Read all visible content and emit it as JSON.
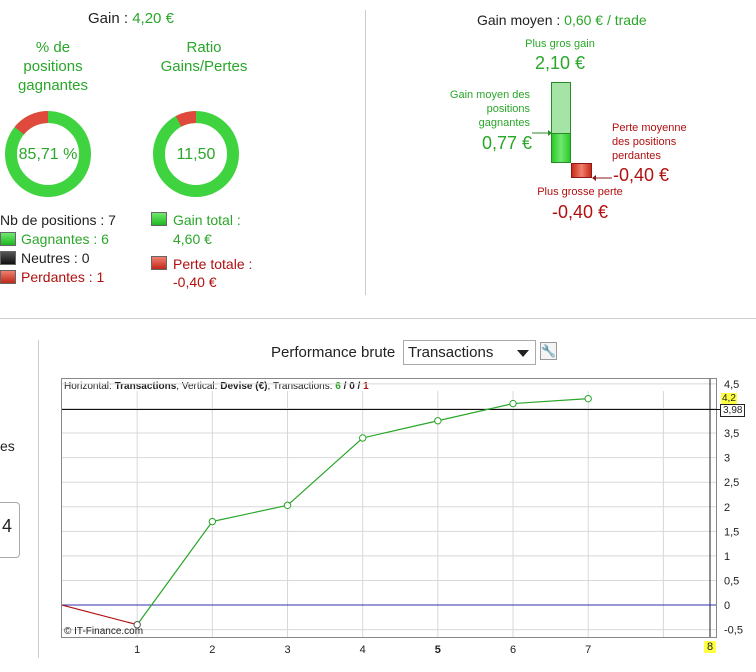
{
  "summary": {
    "gain_label": "Gain :",
    "gain_value": "4,20 €",
    "win_pct_title": "% de positions gagnantes",
    "win_pct_value": "85,71 %",
    "win_pct_fraction": 0.8571,
    "ratio_title": "Ratio Gains/Pertes",
    "ratio_value": "11,50",
    "ratio_fraction": 0.92,
    "nb_positions": "Nb de positions : 7",
    "winners": "Gagnantes : 6",
    "neutral": "Neutres : 0",
    "losers": "Perdantes : 1",
    "gain_total_label": "Gain total :",
    "gain_total_value": "4,60 €",
    "perte_totale_label": "Perte totale :",
    "perte_totale_value": "-0,40 €",
    "colors": {
      "green": "#2aa62a",
      "red": "#b01010",
      "ring_green": "#3fd43f",
      "ring_red": "#e04a3c"
    }
  },
  "gain_moyen": {
    "label": "Gain moyen :",
    "value": "0,60 € / trade",
    "plus_gros_gain_label": "Plus gros gain",
    "plus_gros_gain_value": "2,10 €",
    "gain_moyen_gagnantes_label": "Gain moyen des positions gagnantes",
    "gain_moyen_gagnantes_value": "0,77 €",
    "perte_moyenne_label": "Perte moyenne des positions perdantes",
    "perte_moyenne_value": "-0,40 €",
    "plus_grosse_perte_label": "Plus grosse perte",
    "plus_grosse_perte_value": "-0,40 €"
  },
  "left_partial": {
    "text1": "es",
    "text2": "",
    "box_value": "4"
  },
  "performance": {
    "title": "Performance brute",
    "select_value": "Transactions",
    "info_horizontal_label": "Horizontal:",
    "info_horizontal_value": "Transactions",
    "info_vertical_label": ", Vertical:",
    "info_vertical_value": "Devise (€)",
    "info_transactions_label": ", Transactions:",
    "info_win": "6",
    "info_sep1": " / ",
    "info_neutral": "0",
    "info_sep2": " / ",
    "info_loss": "1",
    "copyright": "© IT-Finance.com",
    "current_value_label": "3,98",
    "top_tag": "4,2",
    "x_highlight_label": "8"
  },
  "chart_data": {
    "type": "line",
    "x": [
      0,
      1,
      2,
      3,
      4,
      5,
      6,
      7
    ],
    "values": [
      0,
      -0.4,
      1.7,
      2.03,
      3.4,
      3.75,
      4.1,
      4.2
    ],
    "x_ticks": [
      "1",
      "2",
      "3",
      "4",
      "5",
      "6",
      "7",
      "8"
    ],
    "y_ticks": [
      "4,5",
      "4",
      "3,5",
      "3",
      "2,5",
      "2",
      "1,5",
      "1",
      "0,5",
      "0",
      "-0,5"
    ],
    "xlim": [
      0,
      8.7
    ],
    "ylim": [
      -0.65,
      4.6
    ],
    "current_level": 3.98,
    "grid": true,
    "colors": {
      "up": "#2aa62a",
      "down": "#b01010",
      "zero_line": "#3030b0"
    }
  }
}
